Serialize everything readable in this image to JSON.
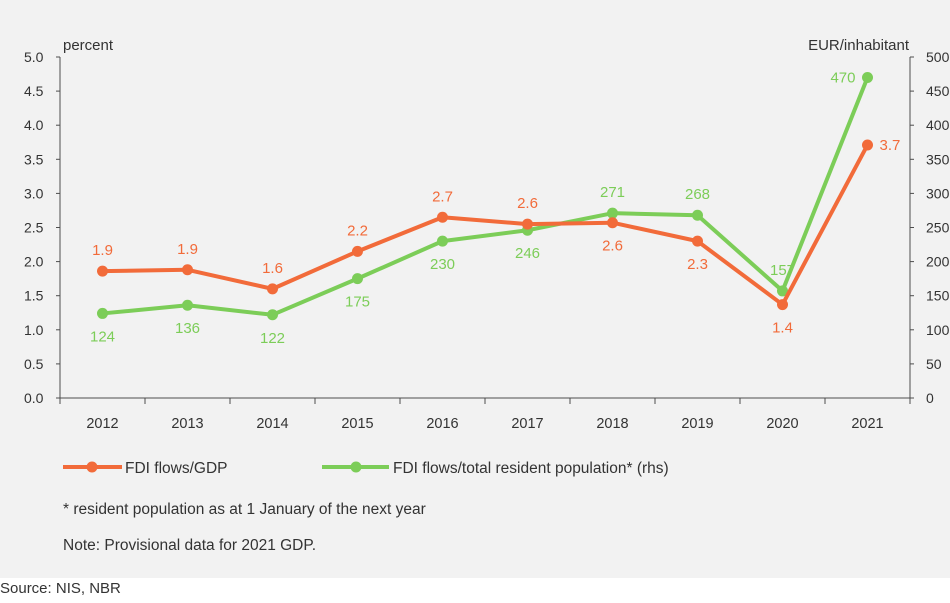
{
  "chart_data": {
    "type": "line",
    "categories": [
      "2012",
      "2013",
      "2014",
      "2015",
      "2016",
      "2017",
      "2018",
      "2019",
      "2020",
      "2021"
    ],
    "left_axis": {
      "unit_label": "percent",
      "ylim": [
        0,
        5
      ],
      "ticks": [
        "0.0",
        "0.5",
        "1.0",
        "1.5",
        "2.0",
        "2.5",
        "3.0",
        "3.5",
        "4.0",
        "4.5",
        "5.0"
      ]
    },
    "right_axis": {
      "unit_label": "EUR/inhabitant",
      "ylim": [
        0,
        500
      ],
      "ticks": [
        "0",
        "50",
        "100",
        "150",
        "200",
        "250",
        "300",
        "350",
        "400",
        "450",
        "500"
      ]
    },
    "series": [
      {
        "name": "FDI flows/GDP",
        "axis": "left",
        "color": "#f26b3a",
        "values": [
          1.86,
          1.88,
          1.6,
          2.15,
          2.65,
          2.55,
          2.57,
          2.3,
          1.37,
          3.71
        ],
        "labels": [
          "1.9",
          "1.9",
          "1.6",
          "2.2",
          "2.7",
          "2.6",
          "2.6",
          "2.3",
          "1.4",
          "3.7"
        ]
      },
      {
        "name": "FDI flows/total resident population* (rhs)",
        "axis": "right",
        "color": "#7ccd58",
        "values": [
          124,
          136,
          122,
          175,
          230,
          246,
          271,
          268,
          157,
          470
        ],
        "labels": [
          "124",
          "136",
          "122",
          "175",
          "230",
          "246",
          "271",
          "268",
          "157",
          "470"
        ]
      }
    ],
    "grid": false,
    "legend_position": "bottom"
  },
  "notes": {
    "footnote": "* resident population as at 1 January of the next year",
    "note": "Note: Provisional data for 2021 GDP."
  },
  "source": "Source: NIS, NBR"
}
